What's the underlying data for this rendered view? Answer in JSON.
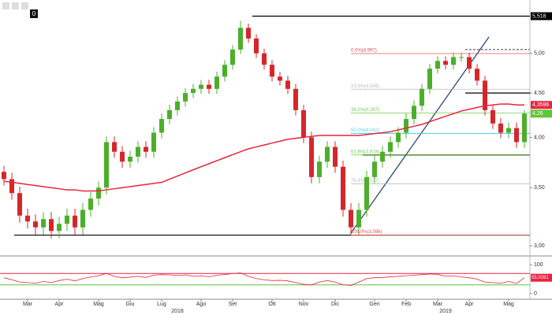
{
  "chart_data": {
    "type": "candlestick",
    "toolbar_value": "0",
    "categories": [
      null,
      null,
      null,
      "Mar",
      null,
      null,
      null,
      "Apr",
      null,
      null,
      null,
      null,
      "Mag",
      null,
      null,
      null,
      "Giu",
      null,
      null,
      null,
      "Lug",
      null,
      null,
      null,
      null,
      "Ago",
      null,
      null,
      null,
      "Set",
      null,
      null,
      null,
      null,
      "Ott",
      null,
      null,
      null,
      "Nov",
      null,
      null,
      null,
      "Dic",
      null,
      null,
      null,
      null,
      "Gen",
      null,
      null,
      null,
      "Feb",
      null,
      null,
      null,
      "Mar",
      null,
      null,
      null,
      "Apr",
      null,
      null,
      null,
      null,
      "Mag",
      null,
      null
    ],
    "year_labels": [
      null,
      null,
      null,
      null,
      null,
      null,
      null,
      null,
      null,
      null,
      null,
      null,
      null,
      null,
      null,
      null,
      null,
      null,
      null,
      null,
      null,
      null,
      "2018",
      null,
      null,
      null,
      null,
      null,
      null,
      null,
      null,
      null,
      null,
      null,
      null,
      null,
      null,
      null,
      null,
      null,
      null,
      null,
      null,
      null,
      null,
      null,
      null,
      null,
      null,
      null,
      null,
      null,
      null,
      null,
      null,
      null,
      "2019",
      null,
      null,
      null,
      null,
      null,
      null,
      null,
      null,
      null,
      null
    ],
    "open": [
      3.65,
      3.58,
      3.45,
      3.25,
      3.2,
      3.15,
      3.22,
      3.12,
      3.18,
      3.25,
      3.15,
      3.3,
      3.4,
      3.5,
      3.95,
      3.85,
      3.75,
      3.8,
      3.9,
      3.85,
      4.05,
      4.2,
      4.3,
      4.4,
      4.5,
      4.55,
      4.6,
      4.55,
      4.7,
      4.85,
      5.05,
      5.35,
      5.2,
      5.0,
      4.85,
      4.7,
      4.65,
      4.55,
      4.3,
      4.0,
      3.6,
      3.75,
      3.9,
      3.7,
      3.3,
      3.15,
      3.3,
      3.6,
      3.75,
      3.85,
      3.95,
      4.05,
      4.2,
      4.35,
      4.55,
      4.8,
      4.9,
      4.85,
      4.95,
      4.95,
      4.8,
      4.65,
      4.3,
      4.15,
      4.05,
      4.1,
      3.95
    ],
    "high": [
      3.71,
      3.64,
      3.51,
      3.31,
      3.26,
      3.28,
      3.28,
      3.24,
      3.31,
      3.31,
      3.36,
      3.46,
      3.56,
      4.01,
      4.01,
      3.91,
      3.86,
      3.96,
      3.96,
      4.11,
      4.26,
      4.36,
      4.46,
      4.56,
      4.61,
      4.66,
      4.66,
      4.76,
      4.91,
      5.11,
      5.45,
      5.41,
      5.26,
      5.06,
      4.91,
      4.76,
      4.71,
      4.61,
      4.36,
      4.06,
      3.81,
      3.96,
      3.96,
      3.76,
      3.36,
      3.36,
      3.66,
      3.81,
      3.91,
      4.01,
      4.11,
      4.26,
      4.41,
      4.61,
      4.86,
      4.96,
      4.96,
      5.01,
      5.01,
      5.01,
      4.86,
      4.71,
      4.36,
      4.21,
      4.16,
      4.16,
      4.3
    ],
    "low": [
      3.52,
      3.39,
      3.19,
      3.14,
      3.09,
      3.09,
      3.06,
      3.06,
      3.12,
      3.09,
      3.09,
      3.24,
      3.34,
      3.44,
      3.79,
      3.69,
      3.69,
      3.74,
      3.79,
      3.79,
      3.99,
      4.14,
      4.24,
      4.34,
      4.44,
      4.49,
      4.49,
      4.49,
      4.64,
      4.79,
      4.99,
      5.14,
      4.94,
      4.79,
      4.64,
      4.59,
      4.49,
      4.24,
      3.94,
      3.54,
      3.54,
      3.69,
      3.64,
      3.24,
      3.09,
      3.09,
      3.24,
      3.54,
      3.69,
      3.79,
      3.89,
      3.99,
      4.14,
      4.29,
      4.49,
      4.74,
      4.79,
      4.79,
      4.89,
      4.74,
      4.59,
      4.24,
      4.09,
      3.99,
      3.99,
      3.89,
      3.89
    ],
    "close": [
      3.58,
      3.45,
      3.25,
      3.2,
      3.15,
      3.22,
      3.12,
      3.18,
      3.25,
      3.15,
      3.3,
      3.4,
      3.5,
      3.95,
      3.85,
      3.75,
      3.8,
      3.9,
      3.85,
      4.05,
      4.2,
      4.3,
      4.4,
      4.5,
      4.55,
      4.6,
      4.55,
      4.7,
      4.85,
      5.05,
      5.35,
      5.2,
      5.0,
      4.85,
      4.7,
      4.65,
      4.55,
      4.3,
      4.0,
      3.6,
      3.75,
      3.9,
      3.7,
      3.3,
      3.15,
      3.3,
      3.6,
      3.75,
      3.85,
      3.95,
      4.05,
      4.2,
      4.35,
      4.55,
      4.8,
      4.9,
      4.85,
      4.95,
      4.95,
      4.8,
      4.65,
      4.3,
      4.15,
      4.05,
      4.1,
      3.95,
      4.26
    ],
    "up_color": "#4caf2a",
    "down_color": "#d7262a",
    "ma": {
      "color": "#e8233f",
      "values": [
        3.56,
        3.55,
        3.54,
        3.53,
        3.52,
        3.51,
        3.5,
        3.49,
        3.48,
        3.48,
        3.47,
        3.47,
        3.47,
        3.48,
        3.49,
        3.5,
        3.51,
        3.52,
        3.53,
        3.54,
        3.55,
        3.58,
        3.61,
        3.64,
        3.67,
        3.7,
        3.73,
        3.76,
        3.79,
        3.82,
        3.85,
        3.88,
        3.9,
        3.92,
        3.94,
        3.96,
        3.98,
        3.99,
        4.0,
        4.01,
        4.02,
        4.02,
        4.02,
        4.02,
        4.02,
        4.02,
        4.03,
        4.04,
        4.05,
        4.06,
        4.08,
        4.1,
        4.12,
        4.14,
        4.17,
        4.2,
        4.23,
        4.26,
        4.29,
        4.31,
        4.33,
        4.35,
        4.36,
        4.37,
        4.37,
        4.36,
        4.3596
      ]
    },
    "log_scale": true,
    "ylim": [
      2.92,
      5.7
    ],
    "yticks": [
      {
        "value": 5.0,
        "label": "5,00"
      },
      {
        "value": 4.5,
        "label": "4,50"
      },
      {
        "value": 4.0,
        "label": "4,00"
      },
      {
        "value": 3.5,
        "label": "3,50"
      },
      {
        "value": 3.0,
        "label": "3,00"
      }
    ],
    "levels": [
      {
        "value": 5.518,
        "color": "#000000"
      },
      {
        "value": 3.086,
        "color": "#000000"
      },
      {
        "value": 4.5,
        "color": "#000000"
      },
      {
        "value": 3.818,
        "color": "#000000"
      },
      {
        "value": 4.042,
        "color": "#5bd3e6"
      },
      {
        "value": 5.05,
        "color": "#555555",
        "dashed": true
      }
    ],
    "fib": [
      {
        "label": "0.0%(4,997)",
        "value": 4.997,
        "color": "#e05050"
      },
      {
        "label": "23.6%(4,546)",
        "value": 4.546,
        "color": "#bbbbbb"
      },
      {
        "label": "38.2%(4,267)",
        "value": 4.267,
        "color": "#6fd04a"
      },
      {
        "label": "50.0%(4,042)",
        "value": 4.042,
        "color": "#5bd3e6"
      },
      {
        "label": "61.8%(3,818)",
        "value": 3.818,
        "color": "#6fd04a"
      },
      {
        "label": "76.4%(3,537)",
        "value": 3.537,
        "color": "#bbbbbb"
      },
      {
        "label": "100.0%(3,086)",
        "value": 3.086,
        "color": "#e05050"
      }
    ],
    "tags": [
      {
        "label": "5,518",
        "value": 5.518,
        "color": "#000000"
      },
      {
        "label": "4,3596",
        "value": 4.3596,
        "color": "#e8233f"
      },
      {
        "label": "4,26",
        "value": 4.26,
        "color": "#5fc634"
      }
    ],
    "rsi": {
      "color": "#e8233f",
      "values": [
        55,
        48,
        40,
        38,
        36,
        42,
        38,
        45,
        50,
        44,
        52,
        58,
        62,
        70,
        60,
        55,
        57,
        60,
        56,
        64,
        66,
        65,
        63,
        65,
        60,
        62,
        58,
        64,
        66,
        70,
        72,
        60,
        52,
        48,
        45,
        46,
        44,
        38,
        32,
        30,
        40,
        45,
        40,
        30,
        28,
        40,
        52,
        55,
        56,
        58,
        60,
        62,
        64,
        66,
        68,
        67,
        60,
        62,
        58,
        55,
        50,
        40,
        38,
        36,
        42,
        35,
        55.0281
      ],
      "ylim": [
        -20,
        120
      ],
      "yticks": [
        100,
        0
      ],
      "levels": [
        {
          "value": 70,
          "color": "#e8233f"
        },
        {
          "value": 30,
          "color": "#5fc634"
        }
      ],
      "tag": {
        "label": "55,0281",
        "value": 55.0281,
        "color": "#e8233f"
      }
    }
  }
}
